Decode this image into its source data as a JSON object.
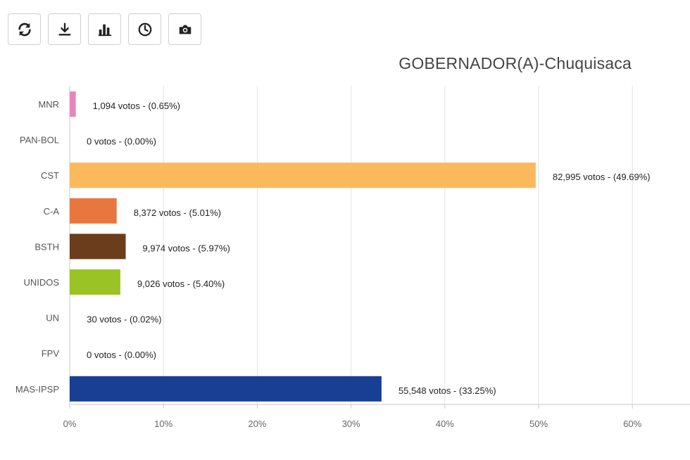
{
  "toolbar": {
    "buttons": [
      {
        "name": "refresh-icon"
      },
      {
        "name": "download-icon"
      },
      {
        "name": "bar-chart-icon"
      },
      {
        "name": "clock-icon"
      },
      {
        "name": "camera-icon"
      }
    ]
  },
  "chart_data": {
    "type": "bar",
    "orientation": "horizontal",
    "title": "GOBERNADOR(A)-Chuquisaca",
    "xlabel": "",
    "ylabel": "",
    "xlim": [
      0,
      66
    ],
    "xticks": [
      0,
      10,
      20,
      30,
      40,
      50,
      60
    ],
    "xtick_labels": [
      "0%",
      "10%",
      "20%",
      "30%",
      "40%",
      "50%",
      "60%"
    ],
    "grid": true,
    "categories": [
      "MNR",
      "PAN-BOL",
      "CST",
      "C-A",
      "BSTH",
      "UNIDOS",
      "UN",
      "FPV",
      "MAS-IPSP"
    ],
    "values": [
      0.65,
      0.0,
      49.69,
      5.01,
      5.97,
      5.4,
      0.02,
      0.0,
      33.25
    ],
    "votes": [
      "1,094",
      "0",
      "82,995",
      "8,372",
      "9,974",
      "9,026",
      "30",
      "0",
      "55,548"
    ],
    "data_labels": [
      "1,094 votos - (0.65%)",
      "0 votos - (0.00%)",
      "82,995 votos - (49.69%)",
      "8,372 votos - (5.01%)",
      "9,974 votos - (5.97%)",
      "9,026 votos - (5.40%)",
      "30 votos - (0.02%)",
      "0 votos - (0.00%)",
      "55,548 votos - (33.25%)"
    ],
    "colors": [
      "#e687bb",
      "#b0b0b0",
      "#fbb95c",
      "#e8773f",
      "#6b3d1c",
      "#9ac425",
      "#999999",
      "#999999",
      "#183f93"
    ]
  }
}
